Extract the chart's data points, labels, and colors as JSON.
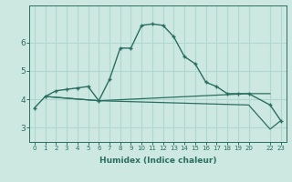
{
  "xlabel": "Humidex (Indice chaleur)",
  "bg_color": "#cce8e0",
  "grid_color": "#b0d8d0",
  "line_color": "#2a6e62",
  "xlim": [
    -0.5,
    23.5
  ],
  "ylim": [
    2.5,
    7.3
  ],
  "xticks": [
    0,
    1,
    2,
    3,
    4,
    5,
    6,
    7,
    8,
    9,
    10,
    11,
    12,
    13,
    14,
    15,
    16,
    17,
    18,
    19,
    20,
    22,
    23
  ],
  "xtick_labels": [
    "0",
    "1",
    "2",
    "3",
    "4",
    "5",
    "6",
    "7",
    "8",
    "9",
    "10",
    "11",
    "12",
    "13",
    "14",
    "15",
    "16",
    "17",
    "18",
    "19",
    "20",
    "22",
    "23"
  ],
  "yticks": [
    3,
    4,
    5,
    6
  ],
  "main_series": {
    "x": [
      0,
      1,
      2,
      3,
      4,
      5,
      6,
      7,
      8,
      9,
      10,
      11,
      12,
      13,
      14,
      15,
      16,
      17,
      18,
      19,
      20,
      22,
      23
    ],
    "y": [
      3.7,
      4.1,
      4.3,
      4.35,
      4.4,
      4.45,
      3.95,
      4.7,
      5.8,
      5.8,
      6.6,
      6.65,
      6.6,
      6.2,
      5.5,
      5.25,
      4.6,
      4.45,
      4.2,
      4.2,
      4.2,
      3.8,
      3.25
    ]
  },
  "flat_series": {
    "x": [
      1,
      6,
      20,
      22
    ],
    "y": [
      4.1,
      3.95,
      4.2,
      4.2
    ]
  },
  "decline_series": {
    "x": [
      1,
      6,
      20,
      22,
      23
    ],
    "y": [
      4.1,
      3.95,
      3.8,
      2.95,
      3.25
    ]
  }
}
